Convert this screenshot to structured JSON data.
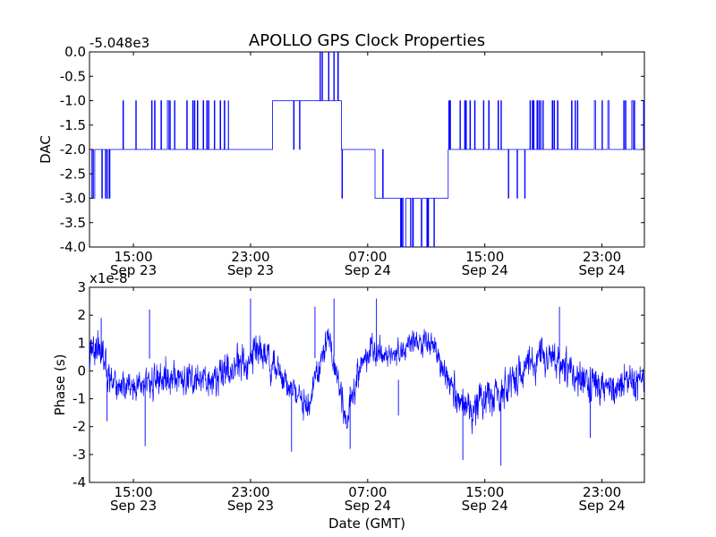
{
  "title": "APOLLO GPS Clock Properties",
  "chart_data": [
    {
      "type": "line",
      "name": "dac-panel",
      "offset_label": "-5.048e3",
      "ylabel": "DAC",
      "ylim": [
        -4.0,
        0.0
      ],
      "yticks": [
        "0.0",
        "-0.5",
        "-1.0",
        "-1.5",
        "-2.0",
        "-2.5",
        "-3.0",
        "-3.5",
        "-4.0"
      ],
      "ytick_values": [
        0.0,
        -0.5,
        -1.0,
        -1.5,
        -2.0,
        -2.5,
        -3.0,
        -3.5,
        -4.0
      ],
      "xlim_hours": [
        12.0,
        49.9
      ],
      "xticks": [
        {
          "time": "15:00",
          "date": "Sep 23",
          "hour": 15
        },
        {
          "time": "23:00",
          "date": "Sep 23",
          "hour": 23
        },
        {
          "time": "07:00",
          "date": "Sep 24",
          "hour": 31
        },
        {
          "time": "15:00",
          "date": "Sep 24",
          "hour": 39
        },
        {
          "time": "23:00",
          "date": "Sep 24",
          "hour": 47
        }
      ],
      "segments": [
        {
          "from": 12.0,
          "to": 12.4,
          "level": -2.0,
          "flicker": -3.0,
          "rate": 0.4
        },
        {
          "from": 12.4,
          "to": 13.4,
          "level": -2.0,
          "flicker": -3.0,
          "rate": 0.7
        },
        {
          "from": 13.4,
          "to": 16.0,
          "level": -2.0,
          "flicker": -1.0,
          "rate": 0.35
        },
        {
          "from": 16.0,
          "to": 17.8,
          "level": -2.0,
          "flicker": -1.0,
          "rate": 0.6
        },
        {
          "from": 17.8,
          "to": 21.5,
          "level": -2.0,
          "flicker": -1.0,
          "rate": 0.45
        },
        {
          "from": 21.5,
          "to": 24.5,
          "level": -2.0,
          "flicker": -2.0,
          "rate": 0.0
        },
        {
          "from": 24.5,
          "to": 26.5,
          "level": -1.0,
          "flicker": -2.0,
          "rate": 0.35
        },
        {
          "from": 26.5,
          "to": 27.8,
          "level": -1.0,
          "flicker": 0.0,
          "rate": 0.4
        },
        {
          "from": 27.8,
          "to": 29.2,
          "level": -1.0,
          "flicker": 0.0,
          "rate": 0.25
        },
        {
          "from": 29.2,
          "to": 29.8,
          "level": -2.0,
          "flicker": -3.0,
          "rate": 0.4
        },
        {
          "from": 29.8,
          "to": 31.5,
          "level": -2.0,
          "flicker": -2.0,
          "rate": 0.0
        },
        {
          "from": 31.5,
          "to": 33.2,
          "level": -3.0,
          "flicker": -2.0,
          "rate": 0.25
        },
        {
          "from": 33.2,
          "to": 35.8,
          "level": -3.0,
          "flicker": -4.0,
          "rate": 0.7
        },
        {
          "from": 35.8,
          "to": 36.5,
          "level": -3.0,
          "flicker": -2.0,
          "rate": 0.2
        },
        {
          "from": 36.5,
          "to": 40.2,
          "level": -2.0,
          "flicker": -1.0,
          "rate": 0.5
        },
        {
          "from": 40.2,
          "to": 42.0,
          "level": -2.0,
          "flicker": -3.0,
          "rate": 0.45
        },
        {
          "from": 42.0,
          "to": 45.0,
          "level": -2.0,
          "flicker": -1.0,
          "rate": 0.6
        },
        {
          "from": 45.0,
          "to": 49.9,
          "level": -2.0,
          "flicker": -1.0,
          "rate": 0.4
        }
      ]
    },
    {
      "type": "line",
      "name": "phase-panel",
      "offset_label": "x1e-8",
      "ylabel": "Phase (s)",
      "xlabel": "Date (GMT)",
      "ylim": [
        -4,
        3
      ],
      "yticks": [
        "3",
        "2",
        "1",
        "0",
        "-1",
        "-2",
        "-3",
        "-4"
      ],
      "ytick_values": [
        3,
        2,
        1,
        0,
        -1,
        -2,
        -3,
        -4
      ],
      "xlim_hours": [
        12.0,
        49.9
      ],
      "xticks": [
        {
          "time": "15:00",
          "date": "Sep 23",
          "hour": 15
        },
        {
          "time": "23:00",
          "date": "Sep 23",
          "hour": 23
        },
        {
          "time": "07:00",
          "date": "Sep 24",
          "hour": 31
        },
        {
          "time": "15:00",
          "date": "Sep 24",
          "hour": 39
        },
        {
          "time": "23:00",
          "date": "Sep 24",
          "hour": 47
        }
      ],
      "envelope": [
        {
          "hour": 12.0,
          "mean": 0.6,
          "spread": 0.5
        },
        {
          "hour": 12.6,
          "mean": 0.9,
          "spread": 0.6
        },
        {
          "hour": 13.5,
          "mean": -0.5,
          "spread": 0.5
        },
        {
          "hour": 15.0,
          "mean": -0.6,
          "spread": 0.45
        },
        {
          "hour": 16.0,
          "mean": -0.5,
          "spread": 0.6
        },
        {
          "hour": 17.5,
          "mean": -0.2,
          "spread": 0.6
        },
        {
          "hour": 19.5,
          "mean": -0.4,
          "spread": 0.55
        },
        {
          "hour": 21.0,
          "mean": -0.2,
          "spread": 0.6
        },
        {
          "hour": 23.0,
          "mean": 0.5,
          "spread": 0.6
        },
        {
          "hour": 24.0,
          "mean": 0.7,
          "spread": 0.6
        },
        {
          "hour": 25.2,
          "mean": -0.3,
          "spread": 0.45
        },
        {
          "hour": 26.8,
          "mean": -1.3,
          "spread": 0.45
        },
        {
          "hour": 27.8,
          "mean": 0.2,
          "spread": 0.5
        },
        {
          "hour": 28.3,
          "mean": 1.3,
          "spread": 0.5
        },
        {
          "hour": 29.0,
          "mean": -0.5,
          "spread": 0.5
        },
        {
          "hour": 29.6,
          "mean": -1.9,
          "spread": 0.45
        },
        {
          "hour": 30.3,
          "mean": 0.0,
          "spread": 0.5
        },
        {
          "hour": 31.2,
          "mean": 0.8,
          "spread": 0.45
        },
        {
          "hour": 32.5,
          "mean": 0.6,
          "spread": 0.45
        },
        {
          "hour": 34.0,
          "mean": 1.0,
          "spread": 0.45
        },
        {
          "hour": 35.5,
          "mean": 0.9,
          "spread": 0.45
        },
        {
          "hour": 36.6,
          "mean": -0.6,
          "spread": 0.5
        },
        {
          "hour": 37.8,
          "mean": -1.4,
          "spread": 0.55
        },
        {
          "hour": 39.0,
          "mean": -1.0,
          "spread": 0.6
        },
        {
          "hour": 40.2,
          "mean": -0.8,
          "spread": 0.65
        },
        {
          "hour": 41.5,
          "mean": 0.0,
          "spread": 0.6
        },
        {
          "hour": 43.0,
          "mean": 0.5,
          "spread": 0.6
        },
        {
          "hour": 44.5,
          "mean": 0.1,
          "spread": 0.6
        },
        {
          "hour": 46.0,
          "mean": -0.4,
          "spread": 0.6
        },
        {
          "hour": 47.5,
          "mean": -0.6,
          "spread": 0.6
        },
        {
          "hour": 49.9,
          "mean": -0.3,
          "spread": 0.6
        }
      ],
      "spikes": [
        {
          "hour": 12.8,
          "value": 1.9
        },
        {
          "hour": 13.2,
          "value": -1.8
        },
        {
          "hour": 15.8,
          "value": -2.7
        },
        {
          "hour": 16.1,
          "value": 2.2
        },
        {
          "hour": 23.0,
          "value": 2.6
        },
        {
          "hour": 25.8,
          "value": -2.9
        },
        {
          "hour": 27.4,
          "value": 2.3
        },
        {
          "hour": 28.7,
          "value": 2.6
        },
        {
          "hour": 29.8,
          "value": -2.8
        },
        {
          "hour": 31.6,
          "value": 2.6
        },
        {
          "hour": 33.1,
          "value": -1.6
        },
        {
          "hour": 37.5,
          "value": -3.2
        },
        {
          "hour": 40.1,
          "value": -3.4
        },
        {
          "hour": 44.1,
          "value": 2.3
        },
        {
          "hour": 46.2,
          "value": -2.4
        }
      ]
    }
  ]
}
